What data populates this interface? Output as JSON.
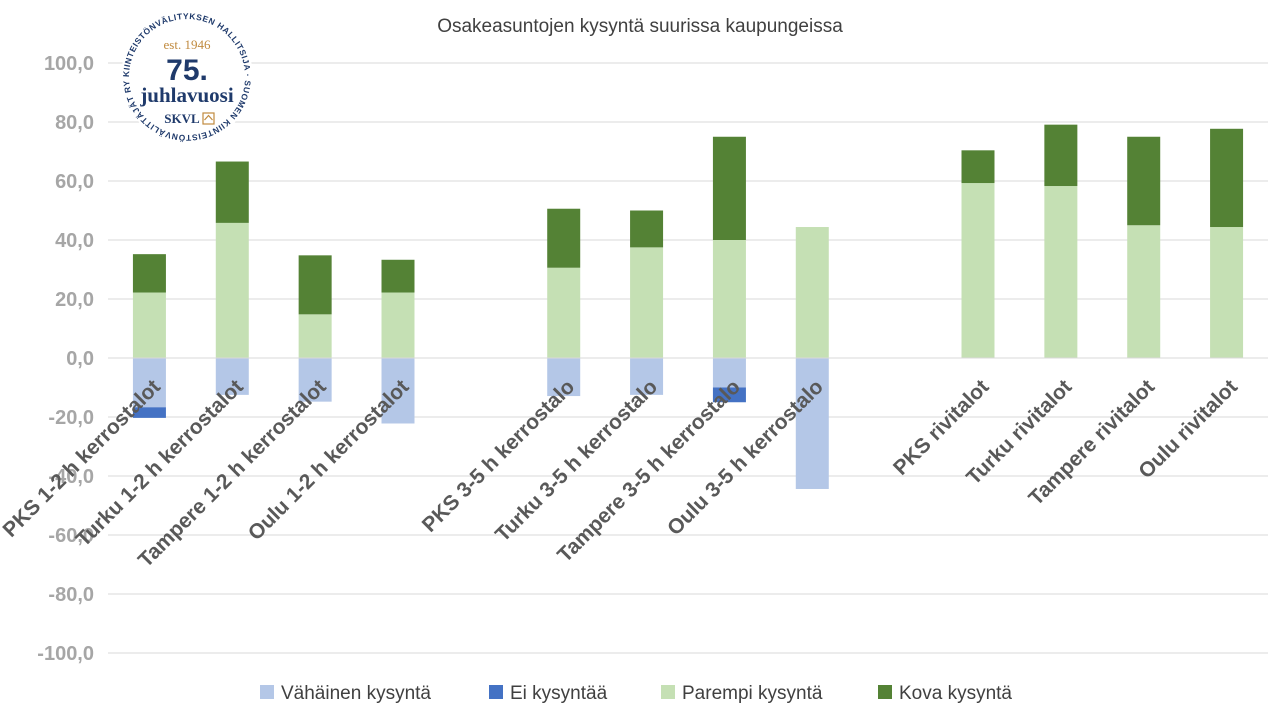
{
  "logo": {
    "ring_text": "KIINTEISTÖNVÄLITYKSEN HALLITSIJA · SUOMEN KIINTEISTÖNVÄLITTÄJÄT RY ·",
    "est": "est. 1946",
    "big": "75.",
    "juhla": "juhlavuosi",
    "skvl": "SKVL",
    "color": "#1f3a6b",
    "accent": "#c08a3e"
  },
  "chart_data": {
    "type": "bar",
    "stacked": true,
    "title": "Osakeasuntojen kysyntä suurissa kaupungeissa",
    "categories": [
      "PKS 1-2 h kerrostalot",
      "Turku 1-2 h kerrostalot",
      "Tampere 1-2 h kerrostalot",
      "Oulu 1-2 h kerrostalot",
      "PKS 3-5 h kerrostalo",
      "Turku 3-5 h kerrostalo",
      "Tampere 3-5 h kerrostalo",
      "Oulu 3-5 h kerrostalo",
      "PKS rivitalot",
      "Turku rivitalot",
      "Tampere rivitalot",
      "Oulu rivitalot"
    ],
    "series": [
      {
        "name": "Vähäinen kysyntä",
        "color": "#b4c7e7",
        "values": [
          -16.7,
          -12.5,
          -14.8,
          -22.2,
          -12.9,
          -12.5,
          -10.0,
          -44.4,
          0,
          0,
          0,
          0
        ]
      },
      {
        "name": "Ei kysyntää",
        "color": "#4472c4",
        "values": [
          -3.6,
          0,
          0,
          0,
          0,
          0,
          -5.0,
          0,
          0,
          0,
          0,
          0
        ]
      },
      {
        "name": "Parempi kysyntä",
        "color": "#c5e0b4",
        "values": [
          22.2,
          45.8,
          14.8,
          22.2,
          30.6,
          37.5,
          40.0,
          44.4,
          59.3,
          58.3,
          45.0,
          44.4
        ]
      },
      {
        "name": "Kova kysyntä",
        "color": "#548235",
        "values": [
          13.0,
          20.8,
          20.0,
          11.1,
          20.0,
          12.5,
          35.0,
          0,
          11.1,
          20.8,
          30.0,
          33.3
        ]
      }
    ],
    "ylim": [
      -100,
      100
    ],
    "ytick_step": 20,
    "ytick_labels": [
      "100,0",
      "80,0",
      "60,0",
      "40,0",
      "20,0",
      "0,0",
      "-20,0",
      "-40,0",
      "-60,0",
      "-80,0",
      "-100,0"
    ],
    "grid": true,
    "legend_position": "bottom",
    "xlabel": "",
    "ylabel": ""
  }
}
